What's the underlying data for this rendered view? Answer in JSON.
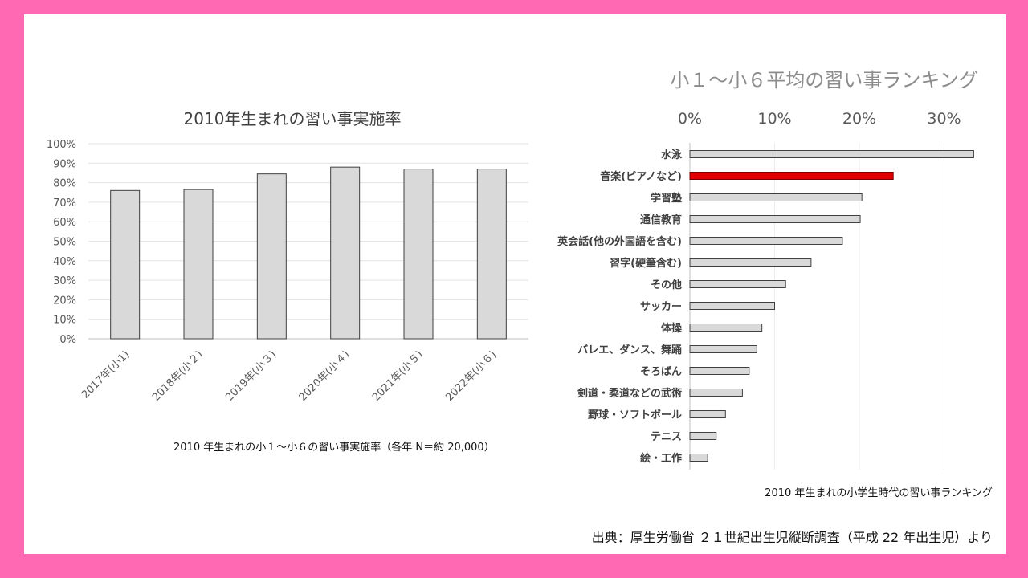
{
  "colors": {
    "frame": "#ff69b4",
    "bar_fill": "#d9d9d9",
    "bar_stroke": "#404040",
    "highlight": "#e00000"
  },
  "chart_data": [
    {
      "type": "bar",
      "title": "2010年生まれの習い事実施率",
      "categories": [
        "2017年(小1)",
        "2018年(小２)",
        "2019年(小３)",
        "2020年(小４)",
        "2021年(小５)",
        "2022年(小６)"
      ],
      "values": [
        76,
        76.5,
        84.5,
        88,
        87,
        87
      ],
      "unit": "%",
      "ylim": [
        0,
        100
      ],
      "ytick_step": 10,
      "yticks": [
        "0%",
        "10%",
        "20%",
        "30%",
        "40%",
        "50%",
        "60%",
        "70%",
        "80%",
        "90%",
        "100%"
      ],
      "grid": true,
      "caption": "2010 年生まれの小１〜小６の習い事実施率（各年 N＝約 20,000）"
    },
    {
      "type": "bar",
      "orientation": "horizontal",
      "title": "小１〜小６平均の習い事ランキング",
      "categories": [
        "水泳",
        "音楽(ピアノなど)",
        "学習塾",
        "通信教育",
        "英会話(他の外国語を含む)",
        "習字(硬筆含む)",
        "その他",
        "サッカー",
        "体操",
        "バレエ、ダンス、舞踊",
        "そろばん",
        "剣道・柔道などの武術",
        "野球・ソフトボール",
        "テニス",
        "絵・工作"
      ],
      "values": [
        33.5,
        24,
        20.3,
        20.1,
        18,
        14.3,
        11.3,
        10,
        8.5,
        7.9,
        7,
        6.2,
        4.2,
        3.1,
        2.1
      ],
      "highlight_index": 1,
      "unit": "%",
      "xlim": [
        0,
        35
      ],
      "xticks": [
        "0%",
        "10%",
        "20%",
        "30%"
      ],
      "caption": "2010 年生まれの小学生時代の習い事ランキング"
    }
  ],
  "source": "出典：厚生労働省 ２１世紀出生児縦断調査（平成 22 年出生児）より"
}
